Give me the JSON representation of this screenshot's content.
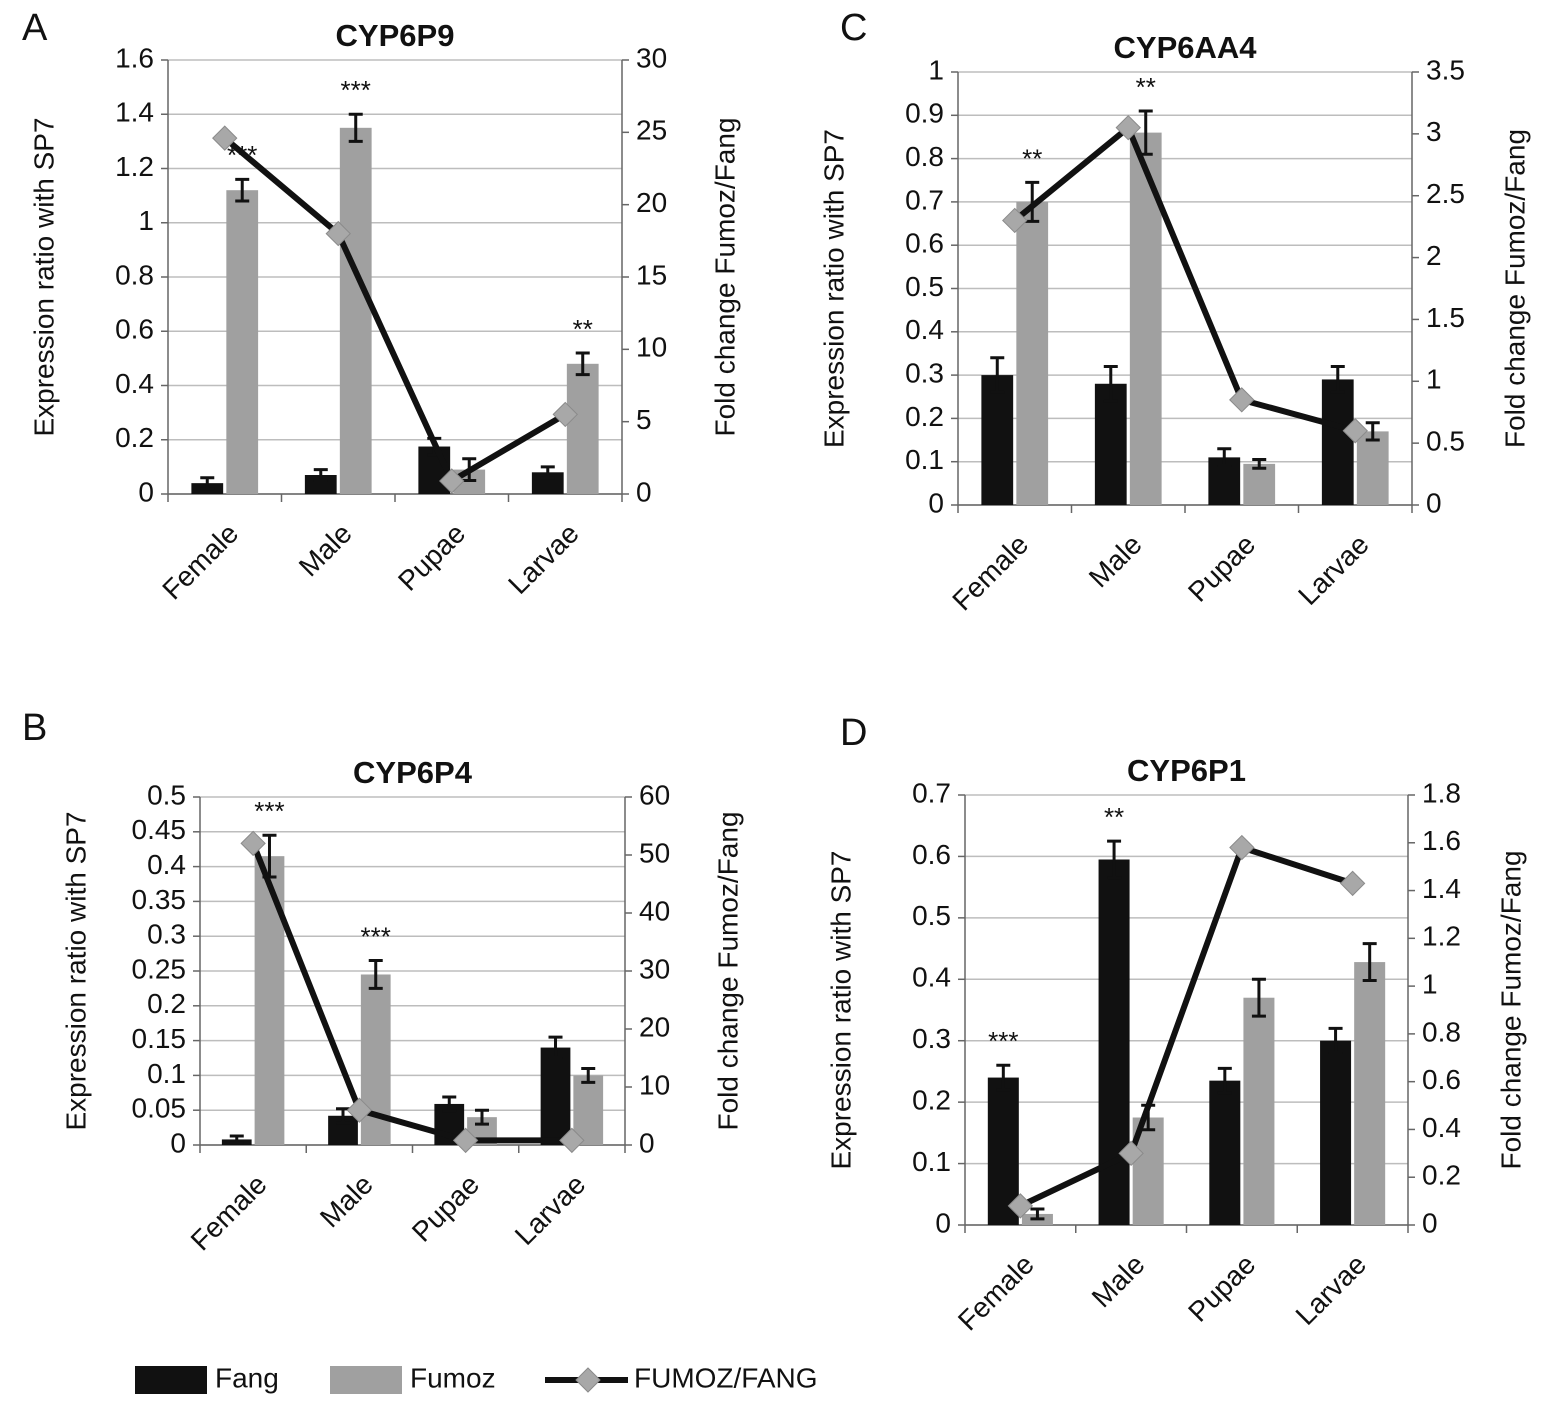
{
  "chart_data": [
    {
      "type": "bar",
      "panel": "A",
      "title": "CYP6P9",
      "ylabel": "Expression ratio with SP7",
      "y2label": "Fold change Fumoz/Fang",
      "categories": [
        "Female",
        "Male",
        "Pupae",
        "Larvae"
      ],
      "ylim": [
        0,
        1.6
      ],
      "yticks": [
        0,
        0.2,
        0.4,
        0.6,
        0.8,
        1,
        1.2,
        1.4,
        1.6
      ],
      "y2lim": [
        0,
        30
      ],
      "y2ticks": [
        0,
        5,
        10,
        15,
        20,
        25,
        30
      ],
      "grid": true,
      "series": [
        {
          "name": "Fang",
          "color": "#111111",
          "values": [
            0.04,
            0.07,
            0.175,
            0.08
          ],
          "errors": [
            0.02,
            0.02,
            0.03,
            0.02
          ]
        },
        {
          "name": "Fumoz",
          "color": "#a0a0a0",
          "values": [
            1.12,
            1.35,
            0.09,
            0.48
          ],
          "errors": [
            0.04,
            0.05,
            0.04,
            0.04
          ]
        },
        {
          "name": "FUMOZ/FANG",
          "type": "line",
          "axis": "y2",
          "color": "#111111",
          "marker_color": "#a8a8a8",
          "values": [
            24.6,
            18,
            0.9,
            5.5
          ]
        }
      ],
      "annotations": [
        {
          "text": "***",
          "category": "Female",
          "series": "Fumoz"
        },
        {
          "text": "***",
          "category": "Male",
          "series": "Fumoz"
        },
        {
          "text": "**",
          "category": "Larvae",
          "series": "Fumoz"
        }
      ]
    },
    {
      "type": "bar",
      "panel": "B",
      "title": "CYP6P4",
      "ylabel": "Expression ratio with SP7",
      "y2label": "Fold change Fumoz/Fang",
      "categories": [
        "Female",
        "Male",
        "Pupae",
        "Larvae"
      ],
      "ylim": [
        0,
        0.5
      ],
      "yticks": [
        0,
        0.05,
        0.1,
        0.15,
        0.2,
        0.25,
        0.3,
        0.35,
        0.4,
        0.45,
        0.5
      ],
      "y2lim": [
        0,
        60
      ],
      "y2ticks": [
        0,
        10,
        20,
        30,
        40,
        50,
        60
      ],
      "grid": true,
      "series": [
        {
          "name": "Fang",
          "color": "#111111",
          "values": [
            0.008,
            0.042,
            0.059,
            0.14
          ],
          "errors": [
            0.005,
            0.01,
            0.01,
            0.015
          ]
        },
        {
          "name": "Fumoz",
          "color": "#a0a0a0",
          "values": [
            0.415,
            0.245,
            0.04,
            0.1
          ],
          "errors": [
            0.03,
            0.02,
            0.01,
            0.01
          ]
        },
        {
          "name": "FUMOZ/FANG",
          "type": "line",
          "axis": "y2",
          "color": "#111111",
          "marker_color": "#a8a8a8",
          "values": [
            52,
            6,
            0.8,
            0.8
          ]
        }
      ],
      "annotations": [
        {
          "text": "***",
          "category": "Female",
          "series": "Fumoz"
        },
        {
          "text": "***",
          "category": "Male",
          "series": "Fumoz"
        }
      ]
    },
    {
      "type": "bar",
      "panel": "C",
      "title": "CYP6AA4",
      "ylabel": "Expression ratio with SP7",
      "y2label": "Fold change Fumoz/Fang",
      "categories": [
        "Female",
        "Male",
        "Pupae",
        "Larvae"
      ],
      "ylim": [
        0,
        1
      ],
      "yticks": [
        0,
        0.1,
        0.2,
        0.3,
        0.4,
        0.5,
        0.6,
        0.7,
        0.8,
        0.9,
        1
      ],
      "y2lim": [
        0,
        3.5
      ],
      "y2ticks": [
        0,
        0.5,
        1,
        1.5,
        2,
        2.5,
        3,
        3.5
      ],
      "grid": true,
      "series": [
        {
          "name": "Fang",
          "color": "#111111",
          "values": [
            0.3,
            0.28,
            0.11,
            0.29
          ],
          "errors": [
            0.04,
            0.04,
            0.02,
            0.03
          ]
        },
        {
          "name": "Fumoz",
          "color": "#a0a0a0",
          "values": [
            0.7,
            0.86,
            0.095,
            0.17
          ],
          "errors": [
            0.045,
            0.05,
            0.01,
            0.02
          ]
        },
        {
          "name": "FUMOZ/FANG",
          "type": "line",
          "axis": "y2",
          "color": "#111111",
          "marker_color": "#a8a8a8",
          "values": [
            2.3,
            3.05,
            0.85,
            0.6
          ]
        }
      ],
      "annotations": [
        {
          "text": "**",
          "category": "Female",
          "series": "Fumoz"
        },
        {
          "text": "**",
          "category": "Male",
          "series": "Fumoz"
        }
      ]
    },
    {
      "type": "bar",
      "panel": "D",
      "title": "CYP6P1",
      "ylabel": "Expression ratio with SP7",
      "y2label": "Fold change Fumoz/Fang",
      "categories": [
        "Female",
        "Male",
        "Pupae",
        "Larvae"
      ],
      "ylim": [
        0,
        0.7
      ],
      "yticks": [
        0,
        0.1,
        0.2,
        0.3,
        0.4,
        0.5,
        0.6,
        0.7
      ],
      "y2lim": [
        0,
        1.8
      ],
      "y2ticks": [
        0,
        0.2,
        0.4,
        0.6,
        0.8,
        1,
        1.2,
        1.4,
        1.6,
        1.8
      ],
      "grid": true,
      "series": [
        {
          "name": "Fang",
          "color": "#111111",
          "values": [
            0.24,
            0.595,
            0.235,
            0.3
          ],
          "errors": [
            0.02,
            0.03,
            0.02,
            0.02
          ]
        },
        {
          "name": "Fumoz",
          "color": "#a0a0a0",
          "values": [
            0.018,
            0.175,
            0.37,
            0.428
          ],
          "errors": [
            0.008,
            0.02,
            0.03,
            0.03
          ]
        },
        {
          "name": "FUMOZ/FANG",
          "type": "line",
          "axis": "y2",
          "color": "#111111",
          "marker_color": "#a8a8a8",
          "values": [
            0.08,
            0.3,
            1.58,
            1.43
          ]
        }
      ],
      "annotations": [
        {
          "text": "***",
          "category": "Female",
          "series": "Fang"
        },
        {
          "text": "**",
          "category": "Male",
          "series": "Fang"
        }
      ]
    }
  ]
}
